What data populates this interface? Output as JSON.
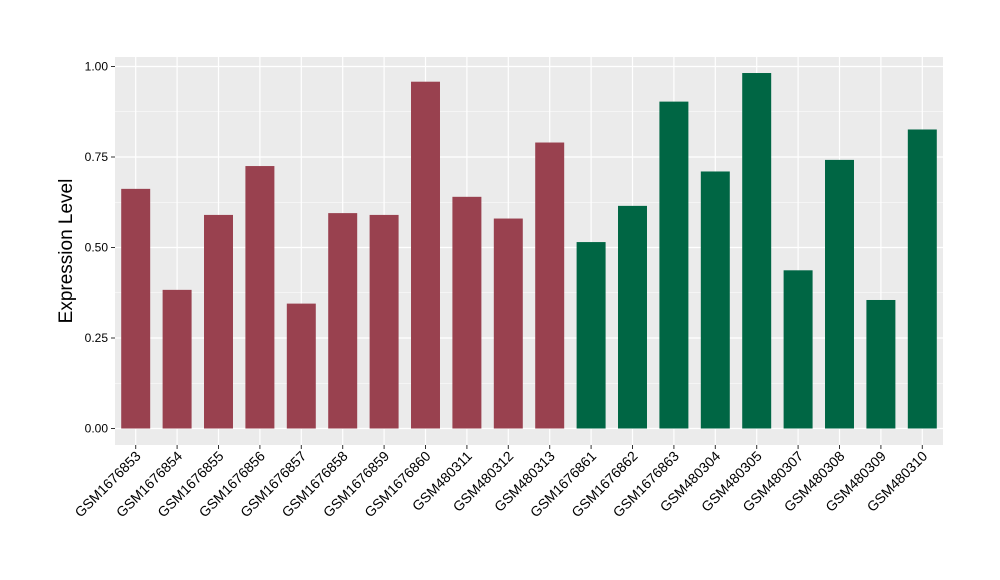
{
  "chart_data": {
    "type": "bar",
    "title": "",
    "xlabel": "",
    "ylabel": "Expression Level",
    "ylim": [
      0,
      1.03
    ],
    "yticks": [
      "0.00",
      "0.25",
      "0.50",
      "0.75",
      "1.00"
    ],
    "grid": true,
    "categories": [
      "GSM1676853",
      "GSM1676854",
      "GSM1676855",
      "GSM1676856",
      "GSM1676857",
      "GSM1676858",
      "GSM1676859",
      "GSM1676860",
      "GSM480311",
      "GSM480312",
      "GSM480313",
      "GSM1676861",
      "GSM1676862",
      "GSM1676863",
      "GSM480304",
      "GSM480305",
      "GSM480307",
      "GSM480308",
      "GSM480309",
      "GSM480310"
    ],
    "values": [
      0.662,
      0.383,
      0.59,
      0.725,
      0.345,
      0.595,
      0.59,
      0.958,
      0.64,
      0.58,
      0.79,
      0.515,
      0.615,
      0.903,
      0.71,
      0.982,
      0.437,
      0.742,
      0.355,
      0.826
    ],
    "colors": [
      "#99414f",
      "#99414f",
      "#99414f",
      "#99414f",
      "#99414f",
      "#99414f",
      "#99414f",
      "#99414f",
      "#99414f",
      "#99414f",
      "#99414f",
      "#006644",
      "#006644",
      "#006644",
      "#006644",
      "#006644",
      "#006644",
      "#006644",
      "#006644",
      "#006644"
    ],
    "panel_background": "#ebebeb",
    "grid_color": "#ffffff"
  }
}
